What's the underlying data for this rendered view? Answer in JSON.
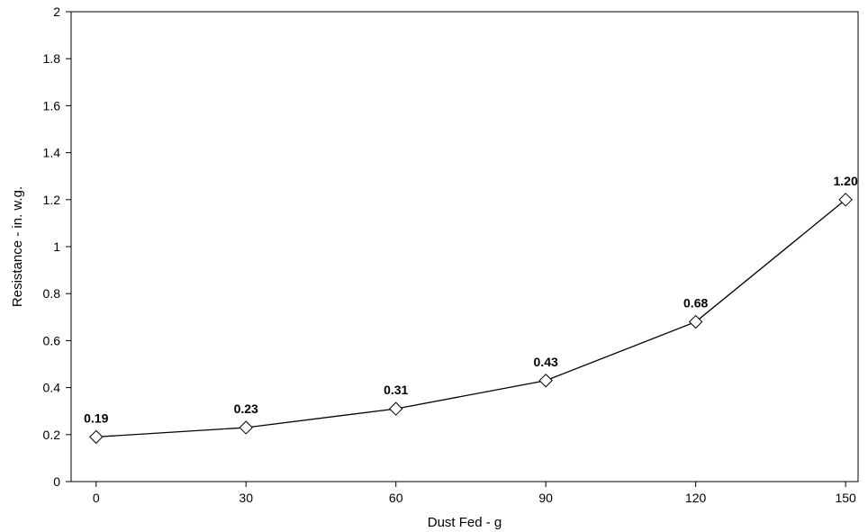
{
  "chart_data": {
    "type": "line",
    "title": "",
    "xlabel": "Dust Fed - g",
    "ylabel": "Resistance - in. w.g.",
    "x": [
      0,
      30,
      60,
      90,
      120,
      150
    ],
    "xticks": [
      "0",
      "30",
      "60",
      "90",
      "120",
      "150"
    ],
    "yticks": [
      "0",
      "0.2",
      "0.4",
      "0.6",
      "0.8",
      "1",
      "1.2",
      "1.4",
      "1.6",
      "1.8",
      "2"
    ],
    "xlim": [
      -5,
      152.5
    ],
    "ylim": [
      0,
      2
    ],
    "grid": false,
    "legend": "none",
    "marker": "diamond",
    "series": [
      {
        "values": [
          0.19,
          0.23,
          0.31,
          0.43,
          0.68,
          1.2
        ],
        "labels": [
          "0.19",
          "0.23",
          "0.31",
          "0.43",
          "0.68",
          "1.20"
        ]
      }
    ],
    "colors": {
      "line": "#000000",
      "marker_fill": "#ffffff"
    }
  }
}
